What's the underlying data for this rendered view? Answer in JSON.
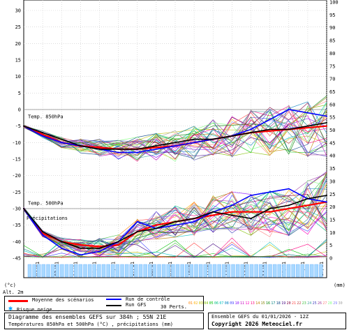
{
  "chart_data": {
    "type": "line",
    "x_dates": [
      "02/01",
      "03/01",
      "04/01",
      "05/01",
      "06/01",
      "07/01",
      "08/01",
      "09/01",
      "10/01",
      "11/01",
      "12/01",
      "13/01",
      "14/01",
      "15/01",
      "16/01",
      "17/01"
    ],
    "left_axis_ticks": [
      "30",
      "25",
      "20",
      "15",
      "10",
      "5",
      "0",
      "-5",
      "-10",
      "-15",
      "-20",
      "-25",
      "-30",
      "-35",
      "-40",
      "-45"
    ],
    "right_axis_ticks": [
      "100",
      "95",
      "90",
      "85",
      "80",
      "75",
      "70",
      "65",
      "60",
      "55",
      "50",
      "45",
      "40",
      "35",
      "30",
      "25",
      "20",
      "15",
      "10",
      "5",
      "0"
    ],
    "left_axis_unit": "(°c)",
    "left_axis_sub": "Alt. 2m",
    "right_axis_unit": "(mm)",
    "panel_labels": {
      "t850": "Temp. 850hPa",
      "t500": "Temp. 500hPa",
      "precip": "Précipitations"
    },
    "ylim": [
      -45,
      30
    ],
    "series": [
      {
        "name": "Moyenne des scénarios",
        "color": "#ff0000",
        "t850": [
          -5,
          -7.5,
          -10,
          -11,
          -11.5,
          -12,
          -12,
          -11.5,
          -11,
          -10,
          -9,
          -8,
          -7,
          -6.5,
          -6,
          -5.5,
          -5
        ],
        "t500": [
          -30,
          -37.5,
          -40,
          -41,
          -41.5,
          -41,
          -37,
          -35,
          -34,
          -33,
          -32,
          -31,
          -31,
          -31,
          -30,
          -29,
          -28
        ]
      },
      {
        "name": "Run de contrôle",
        "color": "#0000ff",
        "t850": [
          -5,
          -8,
          -10,
          -11,
          -12,
          -13,
          -13,
          -12,
          -11,
          -10,
          -9,
          -8,
          -6,
          -3,
          0,
          -1,
          -2
        ],
        "t500": [
          -30,
          -38,
          -42,
          -44,
          -43,
          -40,
          -34,
          -36,
          -35,
          -34,
          -31,
          -29,
          -26,
          -25,
          -24,
          -27,
          -28
        ]
      },
      {
        "name": "Run GFS",
        "color": "#000000",
        "t850": [
          -5,
          -7,
          -9,
          -11,
          -12,
          -12,
          -12,
          -11,
          -10,
          -9,
          -9,
          -8,
          -7,
          -6,
          -6,
          -5,
          -4
        ],
        "t500": [
          -30,
          -37,
          -40,
          -42,
          -42,
          -40,
          -37,
          -36,
          -34,
          -33,
          -31,
          -32,
          -33,
          -30,
          -29,
          -27,
          -26
        ]
      }
    ],
    "precip_perts": "30 Perts.",
    "snow_label": "Risque neige",
    "pert_numbers": [
      "01",
      "02",
      "03",
      "04",
      "05",
      "06",
      "07",
      "08",
      "09",
      "10",
      "11",
      "12",
      "13",
      "14",
      "15",
      "16",
      "17",
      "18",
      "19",
      "20",
      "21",
      "22",
      "23",
      "24",
      "25",
      "26",
      "27",
      "28",
      "29",
      "30"
    ],
    "pert_colors": [
      "#ff8000",
      "#ffb000",
      "#c0c000",
      "#80c000",
      "#00c000",
      "#00c080",
      "#00c0c0",
      "#0080c0",
      "#4040ff",
      "#8000ff",
      "#c000c0",
      "#ff00c0",
      "#ff0080",
      "#c08000",
      "#808000",
      "#008000",
      "#008080",
      "#004080",
      "#400080",
      "#800040",
      "#ff4040",
      "#c04040",
      "#40c040",
      "#40a0a0",
      "#4040c0",
      "#a040a0",
      "#ff8080",
      "#80ff80",
      "#8080ff",
      "#a0a0a0"
    ]
  },
  "title": "Diagramme des ensembles GEFS sur 384h ; 55N 21E",
  "subtitle": "Températures 850hPa et 500hPa (°C) , précipitations (mm)",
  "run_info": "Ensemble GEFS du 01/01/2026 - 12Z",
  "copyright": "Copyright 2026 Meteociel.fr",
  "legend": {
    "mean": "Moyenne des scénarios",
    "control": "Run de contrôle",
    "gfs": "Run GFS"
  }
}
